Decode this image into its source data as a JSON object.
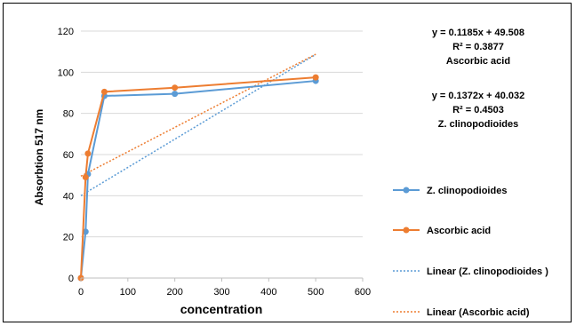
{
  "chart_data": {
    "type": "line",
    "xlabel": "concentration",
    "ylabel": "Absorbtion 517 nm",
    "xlim": [
      0,
      600
    ],
    "ylim": [
      0,
      120
    ],
    "xticks": [
      0,
      100,
      200,
      300,
      400,
      500,
      600
    ],
    "yticks": [
      0,
      20,
      40,
      60,
      80,
      100,
      120
    ],
    "grid": "horizontal",
    "legend_position": "right",
    "series": [
      {
        "name": "Z. clinopodioides",
        "color": "#5B9BD5",
        "x": [
          0,
          10,
          15,
          50,
          200,
          500
        ],
        "y": [
          0,
          22.5,
          50.5,
          88.5,
          89.5,
          95.8
        ]
      },
      {
        "name": "Ascorbic acid",
        "color": "#ED7D31",
        "x": [
          0,
          10,
          15,
          50,
          200,
          500
        ],
        "y": [
          0,
          49,
          60.5,
          90.5,
          92.5,
          97.5
        ]
      }
    ],
    "trendlines": [
      {
        "name": "Linear (Z. clinopodioides )",
        "color": "#5B9BD5",
        "slope": 0.1372,
        "intercept": 40.032,
        "x_range": [
          0,
          500
        ]
      },
      {
        "name": "Linear (Ascorbic acid)",
        "color": "#ED7D31",
        "slope": 0.1185,
        "intercept": 49.508,
        "x_range": [
          0,
          500
        ]
      }
    ],
    "annotations": [
      {
        "equation": "y = 0.1185x + 49.508",
        "r2": "R² = 0.3877",
        "label": "Ascorbic acid"
      },
      {
        "equation": "y = 0.1372x + 40.032",
        "r2": "R² = 0.4503",
        "label": "Z. clinopodioides"
      }
    ]
  }
}
